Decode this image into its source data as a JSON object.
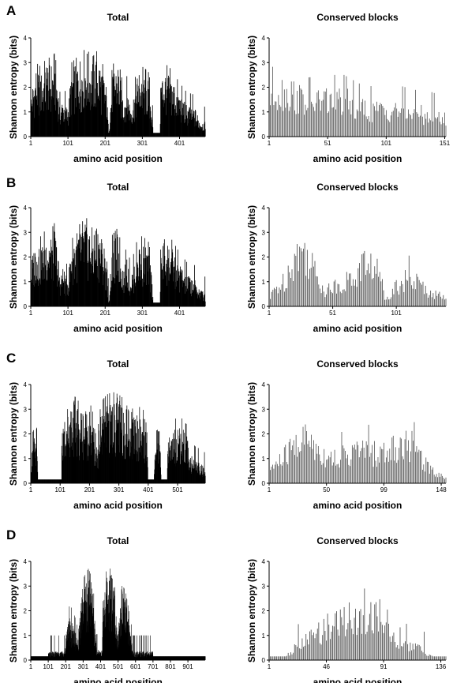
{
  "figure": {
    "panels": [
      {
        "label": "A"
      },
      {
        "label": "B"
      },
      {
        "label": "C"
      },
      {
        "label": "D"
      }
    ]
  },
  "chart_data": [
    {
      "panel": "A",
      "type": "bar",
      "title": "Total",
      "xlabel": "amino acid position",
      "ylabel": "Shannon entropy (bits)",
      "ylim": [
        0,
        4
      ],
      "yticks": [
        0,
        1,
        2,
        3,
        4
      ],
      "xlim": [
        1,
        470
      ],
      "xticks": [
        1,
        101,
        201,
        301,
        401
      ],
      "fill": "solid",
      "profile": [
        [
          1,
          1.4
        ],
        [
          5,
          1.7
        ],
        [
          15,
          2.3
        ],
        [
          30,
          2.1
        ],
        [
          45,
          2.6
        ],
        [
          55,
          2.4
        ],
        [
          65,
          2.7
        ],
        [
          72,
          2.0
        ],
        [
          78,
          1.1
        ],
        [
          88,
          1.3
        ],
        [
          98,
          1.0
        ],
        [
          103,
          1.2
        ],
        [
          110,
          2.3
        ],
        [
          130,
          2.6
        ],
        [
          150,
          2.9
        ],
        [
          165,
          2.5
        ],
        [
          180,
          2.8
        ],
        [
          195,
          2.2
        ],
        [
          205,
          1.6
        ],
        [
          210,
          0.15
        ],
        [
          220,
          2.2
        ],
        [
          235,
          2.5
        ],
        [
          250,
          1.3
        ],
        [
          260,
          1.8
        ],
        [
          268,
          1.1
        ],
        [
          275,
          1.3
        ],
        [
          290,
          2.2
        ],
        [
          305,
          2.1
        ],
        [
          318,
          1.9
        ],
        [
          325,
          1.2
        ],
        [
          330,
          0.15
        ],
        [
          348,
          0.15
        ],
        [
          350,
          2.0
        ],
        [
          360,
          2.3
        ],
        [
          380,
          2.0
        ],
        [
          400,
          1.5
        ],
        [
          420,
          1.1
        ],
        [
          440,
          1.0
        ],
        [
          455,
          0.6
        ],
        [
          470,
          0.5
        ]
      ]
    },
    {
      "panel": "A",
      "type": "bar",
      "title": "Conserved blocks",
      "xlabel": "amino acid position",
      "ylabel": "Shannon entropy (bits)",
      "ylim": [
        0,
        4
      ],
      "yticks": [
        0,
        1,
        2,
        3,
        4
      ],
      "xlim": [
        1,
        152
      ],
      "xticks": [
        1,
        51,
        101,
        151
      ],
      "fill": "hatched",
      "profile": [
        [
          1,
          1.9
        ],
        [
          8,
          2.2
        ],
        [
          20,
          2.0
        ],
        [
          35,
          1.6
        ],
        [
          50,
          1.7
        ],
        [
          65,
          1.7
        ],
        [
          80,
          1.3
        ],
        [
          95,
          1.2
        ],
        [
          110,
          1.3
        ],
        [
          125,
          1.1
        ],
        [
          140,
          1.0
        ],
        [
          152,
          0.8
        ]
      ]
    },
    {
      "panel": "B",
      "type": "bar",
      "title": "Total",
      "xlabel": "amino acid position",
      "ylabel": "Shannon entropy (bits)",
      "ylim": [
        0,
        4
      ],
      "yticks": [
        0,
        1,
        2,
        3,
        4
      ],
      "xlim": [
        1,
        470
      ],
      "xticks": [
        1,
        101,
        201,
        301,
        401
      ],
      "fill": "solid",
      "profile": [
        [
          1,
          1.4
        ],
        [
          5,
          1.7
        ],
        [
          15,
          2.3
        ],
        [
          30,
          2.1
        ],
        [
          45,
          2.6
        ],
        [
          55,
          2.4
        ],
        [
          65,
          2.7
        ],
        [
          72,
          2.0
        ],
        [
          78,
          1.1
        ],
        [
          88,
          1.3
        ],
        [
          98,
          1.0
        ],
        [
          103,
          1.2
        ],
        [
          110,
          2.3
        ],
        [
          130,
          2.6
        ],
        [
          150,
          2.9
        ],
        [
          165,
          2.5
        ],
        [
          180,
          2.8
        ],
        [
          195,
          2.2
        ],
        [
          205,
          1.6
        ],
        [
          210,
          0.15
        ],
        [
          220,
          2.2
        ],
        [
          235,
          2.5
        ],
        [
          250,
          1.3
        ],
        [
          260,
          1.8
        ],
        [
          268,
          1.1
        ],
        [
          275,
          1.3
        ],
        [
          290,
          2.2
        ],
        [
          305,
          2.1
        ],
        [
          318,
          1.9
        ],
        [
          325,
          1.2
        ],
        [
          330,
          0.15
        ],
        [
          348,
          0.15
        ],
        [
          350,
          2.0
        ],
        [
          360,
          2.3
        ],
        [
          380,
          2.0
        ],
        [
          400,
          1.5
        ],
        [
          420,
          1.1
        ],
        [
          440,
          1.0
        ],
        [
          455,
          0.6
        ],
        [
          470,
          0.5
        ]
      ]
    },
    {
      "panel": "B",
      "type": "bar",
      "title": "Conserved blocks",
      "xlabel": "amino acid position",
      "ylabel": "Shannon entropy (bits)",
      "ylim": [
        0,
        4
      ],
      "yticks": [
        0,
        1,
        2,
        3,
        4
      ],
      "xlim": [
        1,
        140
      ],
      "xticks": [
        1,
        51,
        101
      ],
      "fill": "hatched",
      "profile": [
        [
          1,
          0.2
        ],
        [
          5,
          0.8
        ],
        [
          12,
          1.1
        ],
        [
          20,
          2.2
        ],
        [
          25,
          2.6
        ],
        [
          32,
          2.4
        ],
        [
          38,
          1.4
        ],
        [
          45,
          0.8
        ],
        [
          52,
          0.9
        ],
        [
          58,
          1.1
        ],
        [
          68,
          1.3
        ],
        [
          75,
          2.0
        ],
        [
          82,
          1.9
        ],
        [
          88,
          1.5
        ],
        [
          92,
          0.4
        ],
        [
          100,
          0.9
        ],
        [
          108,
          1.3
        ],
        [
          115,
          1.2
        ],
        [
          122,
          0.9
        ],
        [
          130,
          0.6
        ],
        [
          140,
          0.4
        ]
      ]
    },
    {
      "panel": "C",
      "type": "bar",
      "title": "Total",
      "xlabel": "amino acid position",
      "ylabel": "Shannon entropy (bits)",
      "ylim": [
        0,
        4
      ],
      "yticks": [
        0,
        1,
        2,
        3,
        4
      ],
      "xlim": [
        1,
        595
      ],
      "xticks": [
        1,
        101,
        201,
        301,
        401,
        501
      ],
      "fill": "solid",
      "profile": [
        [
          1,
          0.7
        ],
        [
          5,
          1.3
        ],
        [
          15,
          1.6
        ],
        [
          20,
          1.9
        ],
        [
          25,
          0.15
        ],
        [
          105,
          0.15
        ],
        [
          106,
          2.0
        ],
        [
          125,
          2.6
        ],
        [
          145,
          2.9
        ],
        [
          165,
          2.6
        ],
        [
          185,
          2.5
        ],
        [
          200,
          2.6
        ],
        [
          210,
          2.3
        ],
        [
          220,
          1.3
        ],
        [
          230,
          1.6
        ],
        [
          240,
          2.6
        ],
        [
          260,
          2.9
        ],
        [
          280,
          3.0
        ],
        [
          300,
          2.9
        ],
        [
          320,
          2.7
        ],
        [
          340,
          2.6
        ],
        [
          360,
          2.5
        ],
        [
          380,
          2.3
        ],
        [
          395,
          2.2
        ],
        [
          400,
          0.15
        ],
        [
          420,
          0.15
        ],
        [
          421,
          0.8
        ],
        [
          428,
          1.8
        ],
        [
          440,
          1.9
        ],
        [
          445,
          0.15
        ],
        [
          465,
          0.15
        ],
        [
          466,
          1.6
        ],
        [
          490,
          1.9
        ],
        [
          510,
          2.0
        ],
        [
          530,
          1.7
        ],
        [
          545,
          1.0
        ],
        [
          560,
          0.8
        ],
        [
          575,
          0.7
        ],
        [
          590,
          0.6
        ],
        [
          595,
          0.5
        ]
      ]
    },
    {
      "panel": "C",
      "type": "bar",
      "title": "Conserved blocks",
      "xlabel": "amino acid position",
      "ylabel": "Shannon entropy (bits)",
      "ylim": [
        0,
        4
      ],
      "yticks": [
        0,
        1,
        2,
        3,
        4
      ],
      "xlim": [
        1,
        152
      ],
      "xticks": [
        1,
        50,
        99,
        148
      ],
      "fill": "hatched",
      "profile": [
        [
          1,
          0.7
        ],
        [
          10,
          1.0
        ],
        [
          20,
          1.6
        ],
        [
          30,
          2.1
        ],
        [
          38,
          1.9
        ],
        [
          45,
          1.4
        ],
        [
          55,
          1.2
        ],
        [
          65,
          1.3
        ],
        [
          75,
          1.5
        ],
        [
          85,
          1.6
        ],
        [
          95,
          1.3
        ],
        [
          105,
          1.6
        ],
        [
          115,
          1.8
        ],
        [
          122,
          1.9
        ],
        [
          130,
          1.3
        ],
        [
          140,
          0.6
        ],
        [
          152,
          0.3
        ]
      ]
    },
    {
      "panel": "D",
      "type": "bar",
      "title": "Total",
      "xlabel": "amino acid position",
      "ylabel": "Shannon entropy (bits)",
      "ylim": [
        0,
        4
      ],
      "yticks": [
        0,
        1,
        2,
        3,
        4
      ],
      "xlim": [
        1,
        1000
      ],
      "xticks": [
        1,
        101,
        201,
        301,
        401,
        501,
        601,
        701,
        801,
        901
      ],
      "fill": "solid",
      "profile": [
        [
          1,
          0.15
        ],
        [
          100,
          0.15
        ],
        [
          101,
          0.3
        ],
        [
          195,
          0.3
        ],
        [
          200,
          0.8
        ],
        [
          215,
          1.5
        ],
        [
          240,
          1.4
        ],
        [
          270,
          0.6
        ],
        [
          280,
          1.6
        ],
        [
          300,
          2.6
        ],
        [
          330,
          3.0
        ],
        [
          355,
          2.6
        ],
        [
          370,
          1.1
        ],
        [
          378,
          0.35
        ],
        [
          410,
          0.35
        ],
        [
          412,
          1.6
        ],
        [
          425,
          2.8
        ],
        [
          455,
          3.2
        ],
        [
          480,
          2.7
        ],
        [
          492,
          1.4
        ],
        [
          500,
          0.9
        ],
        [
          510,
          1.7
        ],
        [
          525,
          2.4
        ],
        [
          545,
          2.0
        ],
        [
          560,
          1.4
        ],
        [
          575,
          0.8
        ],
        [
          585,
          0.3
        ],
        [
          700,
          0.3
        ],
        [
          701,
          0.15
        ],
        [
          1000,
          0.15
        ]
      ]
    },
    {
      "panel": "D",
      "type": "bar",
      "title": "Conserved blocks",
      "xlabel": "amino acid position",
      "ylabel": "Shannon entropy (bits)",
      "ylim": [
        0,
        4
      ],
      "yticks": [
        0,
        1,
        2,
        3,
        4
      ],
      "xlim": [
        1,
        140
      ],
      "xticks": [
        1,
        46,
        91,
        136
      ],
      "fill": "hatched",
      "profile": [
        [
          1,
          0.15
        ],
        [
          14,
          0.15
        ],
        [
          18,
          0.4
        ],
        [
          25,
          0.7
        ],
        [
          35,
          1.1
        ],
        [
          45,
          1.5
        ],
        [
          55,
          1.8
        ],
        [
          65,
          2.0
        ],
        [
          75,
          2.1
        ],
        [
          85,
          2.1
        ],
        [
          92,
          2.0
        ],
        [
          98,
          1.4
        ],
        [
          103,
          0.5
        ],
        [
          110,
          0.7
        ],
        [
          118,
          0.6
        ],
        [
          124,
          0.3
        ],
        [
          130,
          0.15
        ],
        [
          140,
          0.15
        ]
      ]
    }
  ]
}
